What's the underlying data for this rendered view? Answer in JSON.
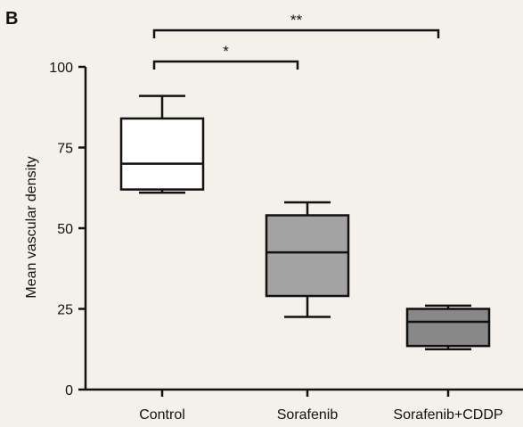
{
  "panel_label": "B",
  "chart_data": {
    "type": "box",
    "ylabel": "Mean vascular density",
    "xlabel": "",
    "ylim": [
      0,
      100
    ],
    "yticks": [
      0,
      25,
      50,
      75,
      100
    ],
    "categories": [
      "Control",
      "Sorafenib",
      "Sorafenib+CDDP"
    ],
    "boxes": [
      {
        "min": 61,
        "q1": 62,
        "median": 70,
        "q3": 84,
        "max": 91,
        "fill": "#ffffff"
      },
      {
        "min": 22.5,
        "q1": 29,
        "median": 42.5,
        "q3": 54,
        "max": 58,
        "fill": "#a3a3a3"
      },
      {
        "min": 12.5,
        "q1": 13.5,
        "median": 21,
        "q3": 25,
        "max": 26,
        "fill": "#888888"
      }
    ],
    "significance": [
      {
        "from": 0,
        "to": 1,
        "label": "*"
      },
      {
        "from": 0,
        "to": 2,
        "label": "**"
      }
    ]
  }
}
